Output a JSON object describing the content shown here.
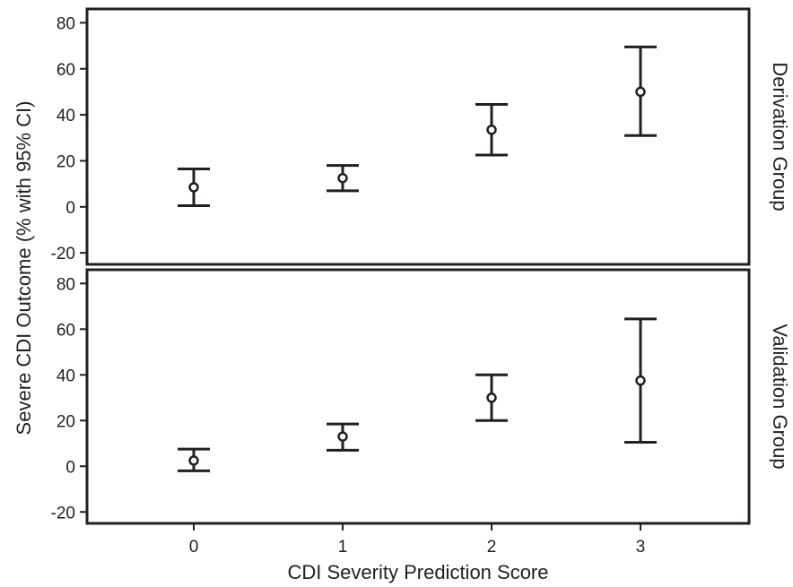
{
  "chart_data": {
    "type": "scatter",
    "xlabel": "CDI Severity Prediction Score",
    "ylabel": "Severe CDI Outcome (% with 95% CI)",
    "x_ticks": [
      "0",
      "1",
      "2",
      "3"
    ],
    "y_ticks": [
      -20,
      0,
      20,
      40,
      60,
      80
    ],
    "ylim": [
      -25,
      86
    ],
    "grid": false,
    "panels": [
      {
        "strip_label": "Derivation Group",
        "points": [
          {
            "x": 0,
            "y": 8.5,
            "lower": 0.5,
            "upper": 16.5
          },
          {
            "x": 1,
            "y": 12.5,
            "lower": 7.0,
            "upper": 18.0
          },
          {
            "x": 2,
            "y": 33.5,
            "lower": 22.5,
            "upper": 44.5
          },
          {
            "x": 3,
            "y": 50.0,
            "lower": 31.0,
            "upper": 69.5
          }
        ]
      },
      {
        "strip_label": "Validation Group",
        "points": [
          {
            "x": 0,
            "y": 2.5,
            "lower": -2.0,
            "upper": 7.5
          },
          {
            "x": 1,
            "y": 13.0,
            "lower": 7.0,
            "upper": 18.5
          },
          {
            "x": 2,
            "y": 30.0,
            "lower": 20.0,
            "upper": 40.0
          },
          {
            "x": 3,
            "y": 37.5,
            "lower": 10.5,
            "upper": 64.5
          }
        ]
      }
    ]
  }
}
